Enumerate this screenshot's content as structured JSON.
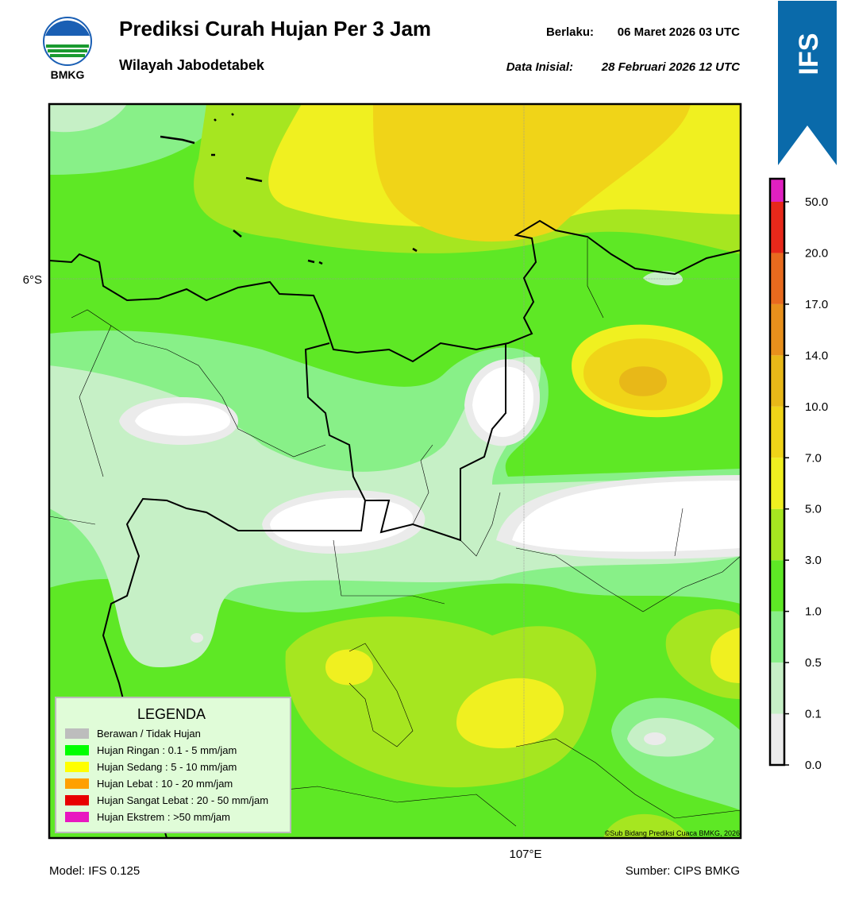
{
  "header": {
    "logo_text": "BMKG",
    "title": "Prediksi Curah Hujan Per 3 Jam",
    "subtitle": "Wilayah Jabodetabek",
    "valid_label": "Berlaku:",
    "valid_time": "06 Maret 2026 03 UTC",
    "init_label": "Data Inisial:",
    "init_time": "28 Februari 2026 12 UTC",
    "badge": "IFS"
  },
  "map": {
    "lat_label": "6°S",
    "lon_label": "107°E",
    "credit": "©Sub Bidang Prediksi Cuaca BMKG, 2026"
  },
  "legend": {
    "title": "LEGENDA",
    "items": [
      {
        "label": "Berawan / Tidak Hujan",
        "color": "#bdbdbd"
      },
      {
        "label": "Hujan Ringan : 0.1 - 5 mm/jam",
        "color": "#00ff00"
      },
      {
        "label": "Hujan Sedang : 5 - 10 mm/jam",
        "color": "#ffff00"
      },
      {
        "label": "Hujan Lebat : 10 - 20 mm/jam",
        "color": "#ffa000"
      },
      {
        "label": "Hujan Sangat Lebat : 20 - 50 mm/jam",
        "color": "#e80000"
      },
      {
        "label": "Hujan Ekstrem : >50 mm/jam",
        "color": "#e818c0"
      }
    ]
  },
  "colorbar": {
    "ticks": [
      "0.0",
      "0.1",
      "0.5",
      "1.0",
      "3.0",
      "5.0",
      "7.0",
      "10.0",
      "14.0",
      "17.0",
      "20.0",
      "50.0"
    ],
    "colors": [
      "#ebebeb",
      "#c6f0c6",
      "#88f088",
      "#5ee825",
      "#a6e620",
      "#f0f020",
      "#f0d418",
      "#e8b818",
      "#e8901c",
      "#e86a1e",
      "#e8281a",
      "#e020c0"
    ]
  },
  "footer": {
    "model": "Model: IFS 0.125",
    "source": "Sumber: CIPS BMKG"
  }
}
